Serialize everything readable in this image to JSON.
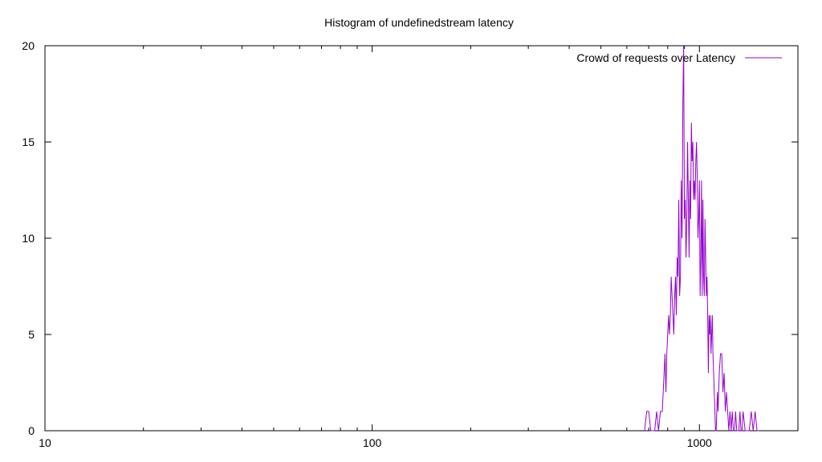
{
  "chart_data": {
    "type": "line",
    "title": "Histogram of undefinedstream latency",
    "xlabel": "",
    "ylabel": "",
    "x_scale": "log",
    "xlim": [
      10,
      2000
    ],
    "ylim": [
      0,
      20
    ],
    "x_ticks": [
      10,
      100,
      1000
    ],
    "x_tick_labels": [
      "10",
      "100",
      "1000"
    ],
    "y_ticks": [
      0,
      5,
      10,
      15,
      20
    ],
    "y_tick_labels": [
      "0",
      "5",
      "10",
      "15",
      "20"
    ],
    "grid": false,
    "legend_position": "top-right",
    "series": [
      {
        "name": "Crowd of requests over Latency",
        "color": "#9400d3",
        "x": [
          680,
          690,
          700,
          710,
          720,
          730,
          740,
          750,
          760,
          770,
          780,
          785,
          790,
          795,
          800,
          805,
          810,
          815,
          820,
          825,
          830,
          835,
          840,
          845,
          850,
          855,
          860,
          865,
          870,
          875,
          880,
          885,
          890,
          895,
          900,
          905,
          910,
          915,
          920,
          925,
          930,
          935,
          940,
          945,
          950,
          955,
          960,
          965,
          970,
          975,
          980,
          985,
          990,
          995,
          1000,
          1005,
          1010,
          1015,
          1020,
          1025,
          1030,
          1035,
          1040,
          1045,
          1050,
          1055,
          1060,
          1065,
          1070,
          1075,
          1080,
          1085,
          1090,
          1095,
          1100,
          1105,
          1110,
          1115,
          1120,
          1125,
          1130,
          1135,
          1140,
          1150,
          1160,
          1170,
          1180,
          1190,
          1200,
          1210,
          1220,
          1230,
          1240,
          1250,
          1260,
          1270,
          1280,
          1290,
          1300,
          1310,
          1320,
          1330,
          1340,
          1350,
          1360,
          1380,
          1400,
          1420,
          1440,
          1460,
          1480,
          1500,
          1520
        ],
        "y": [
          0,
          1,
          1,
          0,
          0,
          0,
          1,
          0,
          1,
          1,
          3,
          4,
          2,
          4,
          5,
          6,
          5,
          6,
          8,
          7,
          6,
          5,
          7,
          8,
          6,
          9,
          8,
          12,
          7,
          8,
          13,
          10,
          17,
          20,
          11,
          12,
          9,
          11,
          15,
          12,
          9,
          13,
          11,
          16,
          14,
          15,
          12,
          13,
          12,
          14,
          15,
          13,
          10,
          11,
          13,
          7,
          9,
          13,
          7,
          12,
          8,
          7,
          11,
          9,
          7,
          8,
          6,
          3,
          6,
          5,
          6,
          4,
          5,
          6,
          4,
          3,
          2,
          1,
          0,
          0,
          1,
          2,
          1,
          3,
          4,
          4,
          2,
          3,
          1,
          2,
          1,
          0,
          1,
          0,
          1,
          0,
          0,
          1,
          0,
          0,
          0,
          1,
          0,
          0,
          1,
          0,
          0,
          0,
          1,
          0,
          1,
          0,
          0
        ]
      }
    ]
  }
}
